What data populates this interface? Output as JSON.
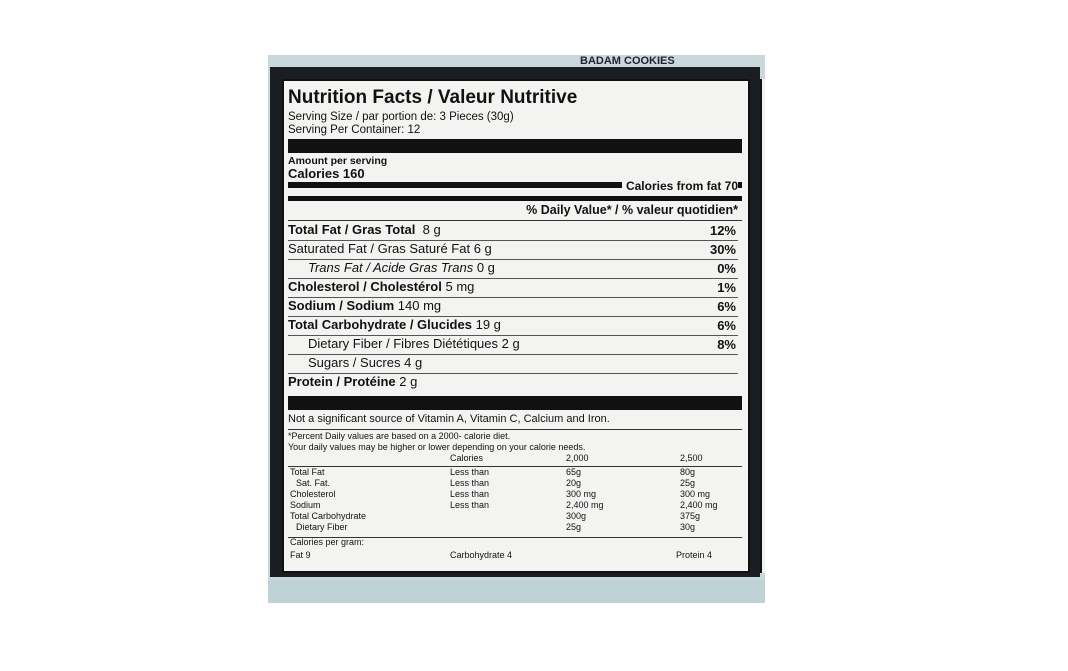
{
  "header": {
    "product": "BADAM COOKIES"
  },
  "label": {
    "title": "Nutrition Facts / Valeur Nutritive",
    "serving_size": "Serving Size / par portion de: 3 Pieces (30g)",
    "servings_per_container": "Serving Per Container: 12",
    "amount_per_serving": "Amount per serving",
    "calories": "Calories 160",
    "calories_from_fat": "Calories from fat 70",
    "dv_header": "% Daily Value* / % valeur quotidien*",
    "nutrients": [
      {
        "label": "Total Fat / Gras Total",
        "amount": "8 g",
        "pct": "12%"
      },
      {
        "label": "Saturated Fat / Gras Saturé Fat",
        "amount": "6 g",
        "pct": "30%"
      },
      {
        "label": "Trans Fat / Acide Gras Trans",
        "amount": "0 g",
        "pct": "0%"
      },
      {
        "label": "Cholesterol / Cholestérol",
        "amount": "5 mg",
        "pct": "1%"
      },
      {
        "label": "Sodium / Sodium",
        "amount": "140 mg",
        "pct": "6%"
      },
      {
        "label": "Total Carbohydrate / Glucides",
        "amount": "19 g",
        "pct": "6%"
      },
      {
        "label": "Dietary Fiber / Fibres Diététiques",
        "amount": "2 g",
        "pct": "8%"
      },
      {
        "label": "Sugars / Sucres",
        "amount": "4 g",
        "pct": ""
      },
      {
        "label": "Protein / Protéine",
        "amount": "2 g",
        "pct": ""
      }
    ],
    "vitamins_note": "Not a significant source of Vitamin A, Vitamin C, Calcium and Iron.",
    "footnote_1": "*Percent Daily values are based on a 2000- calorie diet.",
    "footnote_2": "Your daily values may be higher or lower depending on your calorie needs.",
    "table": {
      "header": [
        "",
        "Calories",
        "2,000",
        "2,500"
      ],
      "rows": [
        [
          "Total Fat",
          "Less than",
          "65g",
          "80g"
        ],
        [
          "Sat. Fat.",
          "Less than",
          "20g",
          "25g"
        ],
        [
          "Cholesterol",
          "Less than",
          "300 mg",
          "300 mg"
        ],
        [
          "Sodium",
          "Less than",
          "2,400 mg",
          "2,400 mg"
        ],
        [
          "Total Carbohydrate",
          "",
          "300g",
          "375g"
        ],
        [
          "Dietary Fiber",
          "",
          "25g",
          "30g"
        ]
      ]
    },
    "calories_per_gram": "Calories per gram:",
    "cpg": [
      "Fat 9",
      "Carbohydrate 4",
      "Protein 4"
    ]
  }
}
